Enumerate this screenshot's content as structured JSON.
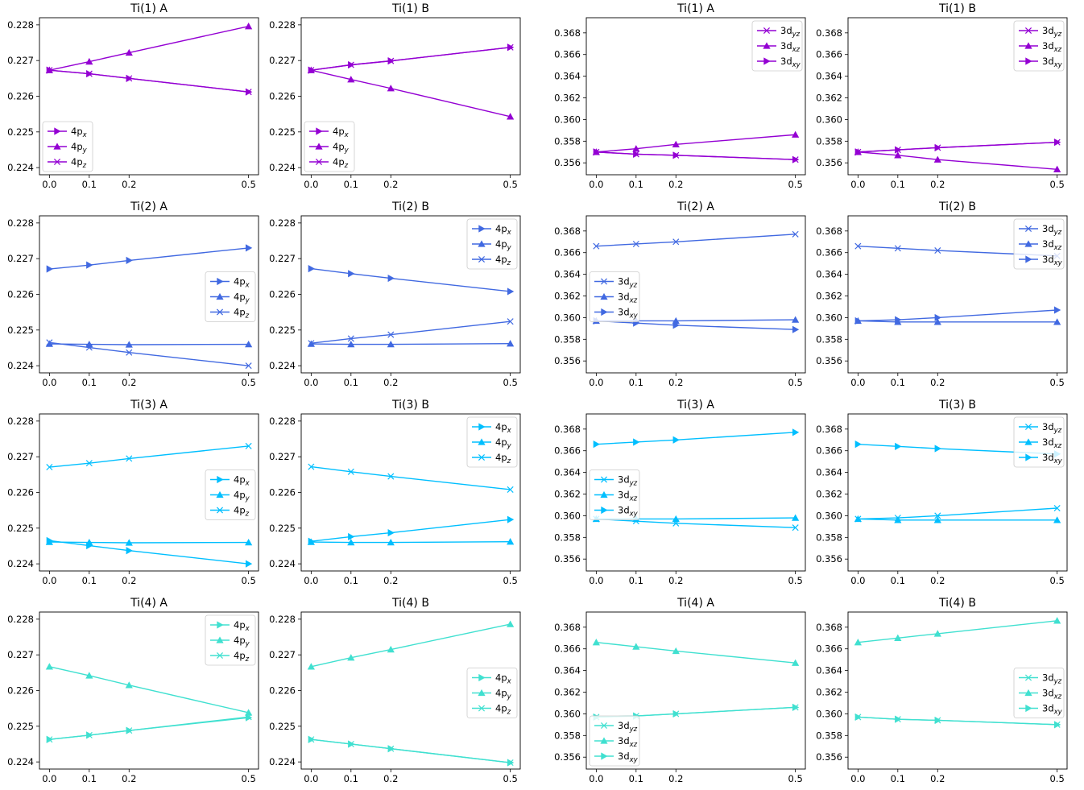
{
  "colors": {
    "Ti(1)": "#9400D3",
    "Ti(2)": "#4169E1",
    "Ti(3)": "#00BFFF",
    "Ti(4)": "#40E0D0"
  },
  "chart_data": [
    {
      "type": "line",
      "title": "Ti(1) A",
      "x": [
        0.0,
        0.1,
        0.2,
        0.5
      ],
      "xticks": [
        "0.0",
        "0.1",
        "0.2",
        "0.5"
      ],
      "ylim": [
        0.2238,
        0.2282
      ],
      "yticks": [
        "0.224",
        "0.225",
        "0.226",
        "0.227",
        "0.228"
      ],
      "legend": "lower-left",
      "series": [
        {
          "name": "4p",
          "sub": "x",
          "marker": "tri-right",
          "values": [
            0.22673,
            0.22663,
            0.2265,
            0.22612
          ]
        },
        {
          "name": "4p",
          "sub": "y",
          "marker": "tri-up",
          "values": [
            0.22673,
            0.22697,
            0.22722,
            0.22796
          ]
        },
        {
          "name": "4p",
          "sub": "z",
          "marker": "x",
          "values": [
            0.22673,
            0.22663,
            0.2265,
            0.22612
          ]
        }
      ]
    },
    {
      "type": "line",
      "title": "Ti(1) B",
      "x": [
        0.0,
        0.1,
        0.2,
        0.5
      ],
      "xticks": [
        "0.0",
        "0.1",
        "0.2",
        "0.5"
      ],
      "ylim": [
        0.2238,
        0.2282
      ],
      "yticks": [
        "0.224",
        "0.225",
        "0.226",
        "0.227",
        "0.228"
      ],
      "legend": "lower-left",
      "series": [
        {
          "name": "4p",
          "sub": "x",
          "marker": "tri-right",
          "values": [
            0.22673,
            0.22688,
            0.22699,
            0.22737
          ]
        },
        {
          "name": "4p",
          "sub": "y",
          "marker": "tri-up",
          "values": [
            0.22673,
            0.22647,
            0.22622,
            0.22543
          ]
        },
        {
          "name": "4p",
          "sub": "z",
          "marker": "x",
          "values": [
            0.22673,
            0.22688,
            0.22699,
            0.22737
          ]
        }
      ]
    },
    {
      "type": "line",
      "title": "Ti(1) A",
      "x": [
        0.0,
        0.1,
        0.2,
        0.5
      ],
      "xticks": [
        "0.0",
        "0.1",
        "0.2",
        "0.5"
      ],
      "ylim": [
        0.3549,
        0.3694
      ],
      "yticks": [
        "0.356",
        "0.358",
        "0.360",
        "0.362",
        "0.364",
        "0.366",
        "0.368"
      ],
      "legend": "top-right",
      "series": [
        {
          "name": "3d",
          "sub": "yz",
          "marker": "x",
          "values": [
            0.357,
            0.3568,
            0.3567,
            0.3563
          ]
        },
        {
          "name": "3d",
          "sub": "xz",
          "marker": "tri-up",
          "values": [
            0.357,
            0.3573,
            0.3577,
            0.3586
          ]
        },
        {
          "name": "3d",
          "sub": "xy",
          "marker": "tri-right",
          "values": [
            0.357,
            0.3568,
            0.3567,
            0.3563
          ]
        }
      ]
    },
    {
      "type": "line",
      "title": "Ti(1) B",
      "x": [
        0.0,
        0.1,
        0.2,
        0.5
      ],
      "xticks": [
        "0.0",
        "0.1",
        "0.2",
        "0.5"
      ],
      "ylim": [
        0.3549,
        0.3694
      ],
      "yticks": [
        "0.356",
        "0.358",
        "0.360",
        "0.362",
        "0.364",
        "0.366",
        "0.368"
      ],
      "legend": "top-right",
      "series": [
        {
          "name": "3d",
          "sub": "yz",
          "marker": "x",
          "values": [
            0.357,
            0.3572,
            0.3574,
            0.3579
          ]
        },
        {
          "name": "3d",
          "sub": "xz",
          "marker": "tri-up",
          "values": [
            0.357,
            0.3567,
            0.3563,
            0.3554
          ]
        },
        {
          "name": "3d",
          "sub": "xy",
          "marker": "tri-right",
          "values": [
            0.357,
            0.3572,
            0.3574,
            0.3579
          ]
        }
      ]
    },
    {
      "type": "line",
      "title": "Ti(2) A",
      "x": [
        0.0,
        0.1,
        0.2,
        0.5
      ],
      "xticks": [
        "0.0",
        "0.1",
        "0.2",
        "0.5"
      ],
      "ylim": [
        0.2238,
        0.2282
      ],
      "yticks": [
        "0.224",
        "0.225",
        "0.226",
        "0.227",
        "0.228"
      ],
      "legend": "center-right",
      "series": [
        {
          "name": "4p",
          "sub": "x",
          "marker": "tri-right",
          "values": [
            0.22671,
            0.22682,
            0.22695,
            0.2273
          ]
        },
        {
          "name": "4p",
          "sub": "y",
          "marker": "tri-up",
          "values": [
            0.22461,
            0.2246,
            0.22459,
            0.2246
          ]
        },
        {
          "name": "4p",
          "sub": "z",
          "marker": "x",
          "values": [
            0.22465,
            0.22451,
            0.22437,
            0.224
          ]
        }
      ]
    },
    {
      "type": "line",
      "title": "Ti(2) B",
      "x": [
        0.0,
        0.1,
        0.2,
        0.5
      ],
      "xticks": [
        "0.0",
        "0.1",
        "0.2",
        "0.5"
      ],
      "ylim": [
        0.2238,
        0.2282
      ],
      "yticks": [
        "0.224",
        "0.225",
        "0.226",
        "0.227",
        "0.228"
      ],
      "legend": "top-right",
      "series": [
        {
          "name": "4p",
          "sub": "x",
          "marker": "tri-right",
          "values": [
            0.22672,
            0.22658,
            0.22645,
            0.22608
          ]
        },
        {
          "name": "4p",
          "sub": "y",
          "marker": "tri-up",
          "values": [
            0.22461,
            0.2246,
            0.2246,
            0.22462
          ]
        },
        {
          "name": "4p",
          "sub": "z",
          "marker": "x",
          "values": [
            0.22463,
            0.22476,
            0.22487,
            0.22524
          ]
        }
      ]
    },
    {
      "type": "line",
      "title": "Ti(2) A",
      "x": [
        0.0,
        0.1,
        0.2,
        0.5
      ],
      "xticks": [
        "0.0",
        "0.1",
        "0.2",
        "0.5"
      ],
      "ylim": [
        0.3549,
        0.3694
      ],
      "yticks": [
        "0.356",
        "0.358",
        "0.360",
        "0.362",
        "0.364",
        "0.366",
        "0.368"
      ],
      "legend": "center-left",
      "series": [
        {
          "name": "3d",
          "sub": "yz",
          "marker": "x",
          "values": [
            0.3666,
            0.3668,
            0.367,
            0.3677
          ]
        },
        {
          "name": "3d",
          "sub": "xz",
          "marker": "tri-up",
          "values": [
            0.3597,
            0.3597,
            0.3597,
            0.3598
          ]
        },
        {
          "name": "3d",
          "sub": "xy",
          "marker": "tri-right",
          "values": [
            0.3597,
            0.3595,
            0.3593,
            0.3589
          ]
        }
      ]
    },
    {
      "type": "line",
      "title": "Ti(2) B",
      "x": [
        0.0,
        0.1,
        0.2,
        0.5
      ],
      "xticks": [
        "0.0",
        "0.1",
        "0.2",
        "0.5"
      ],
      "ylim": [
        0.3549,
        0.3694
      ],
      "yticks": [
        "0.356",
        "0.358",
        "0.360",
        "0.362",
        "0.364",
        "0.366",
        "0.368"
      ],
      "legend": "top-right",
      "series": [
        {
          "name": "3d",
          "sub": "yz",
          "marker": "x",
          "values": [
            0.3666,
            0.3664,
            0.3662,
            0.3657
          ]
        },
        {
          "name": "3d",
          "sub": "xz",
          "marker": "tri-up",
          "values": [
            0.3597,
            0.3596,
            0.3596,
            0.3596
          ]
        },
        {
          "name": "3d",
          "sub": "xy",
          "marker": "tri-right",
          "values": [
            0.3597,
            0.3598,
            0.36,
            0.3607
          ]
        }
      ]
    },
    {
      "type": "line",
      "title": "Ti(3) A",
      "x": [
        0.0,
        0.1,
        0.2,
        0.5
      ],
      "xticks": [
        "0.0",
        "0.1",
        "0.2",
        "0.5"
      ],
      "ylim": [
        0.2238,
        0.2282
      ],
      "yticks": [
        "0.224",
        "0.225",
        "0.226",
        "0.227",
        "0.228"
      ],
      "legend": "center-right",
      "series": [
        {
          "name": "4p",
          "sub": "x",
          "marker": "tri-right",
          "values": [
            0.22465,
            0.22451,
            0.22437,
            0.224
          ]
        },
        {
          "name": "4p",
          "sub": "y",
          "marker": "tri-up",
          "values": [
            0.22461,
            0.2246,
            0.22459,
            0.2246
          ]
        },
        {
          "name": "4p",
          "sub": "z",
          "marker": "x",
          "values": [
            0.22671,
            0.22682,
            0.22695,
            0.2273
          ]
        }
      ]
    },
    {
      "type": "line",
      "title": "Ti(3) B",
      "x": [
        0.0,
        0.1,
        0.2,
        0.5
      ],
      "xticks": [
        "0.0",
        "0.1",
        "0.2",
        "0.5"
      ],
      "ylim": [
        0.2238,
        0.2282
      ],
      "yticks": [
        "0.224",
        "0.225",
        "0.226",
        "0.227",
        "0.228"
      ],
      "legend": "top-right",
      "series": [
        {
          "name": "4p",
          "sub": "x",
          "marker": "tri-right",
          "values": [
            0.22463,
            0.22476,
            0.22487,
            0.22524
          ]
        },
        {
          "name": "4p",
          "sub": "y",
          "marker": "tri-up",
          "values": [
            0.22461,
            0.2246,
            0.2246,
            0.22462
          ]
        },
        {
          "name": "4p",
          "sub": "z",
          "marker": "x",
          "values": [
            0.22672,
            0.22658,
            0.22645,
            0.22608
          ]
        }
      ]
    },
    {
      "type": "line",
      "title": "Ti(3) A",
      "x": [
        0.0,
        0.1,
        0.2,
        0.5
      ],
      "xticks": [
        "0.0",
        "0.1",
        "0.2",
        "0.5"
      ],
      "ylim": [
        0.3549,
        0.3694
      ],
      "yticks": [
        "0.356",
        "0.358",
        "0.360",
        "0.362",
        "0.364",
        "0.366",
        "0.368"
      ],
      "legend": "center-left",
      "series": [
        {
          "name": "3d",
          "sub": "yz",
          "marker": "x",
          "values": [
            0.3597,
            0.3595,
            0.3593,
            0.3589
          ]
        },
        {
          "name": "3d",
          "sub": "xz",
          "marker": "tri-up",
          "values": [
            0.3597,
            0.3597,
            0.3597,
            0.3598
          ]
        },
        {
          "name": "3d",
          "sub": "xy",
          "marker": "tri-right",
          "values": [
            0.3666,
            0.3668,
            0.367,
            0.3677
          ]
        }
      ]
    },
    {
      "type": "line",
      "title": "Ti(3) B",
      "x": [
        0.0,
        0.1,
        0.2,
        0.5
      ],
      "xticks": [
        "0.0",
        "0.1",
        "0.2",
        "0.5"
      ],
      "ylim": [
        0.3549,
        0.3694
      ],
      "yticks": [
        "0.356",
        "0.358",
        "0.360",
        "0.362",
        "0.364",
        "0.366",
        "0.368"
      ],
      "legend": "top-right",
      "series": [
        {
          "name": "3d",
          "sub": "yz",
          "marker": "x",
          "values": [
            0.3597,
            0.3598,
            0.36,
            0.3607
          ]
        },
        {
          "name": "3d",
          "sub": "xz",
          "marker": "tri-up",
          "values": [
            0.3597,
            0.3596,
            0.3596,
            0.3596
          ]
        },
        {
          "name": "3d",
          "sub": "xy",
          "marker": "tri-right",
          "values": [
            0.3666,
            0.3664,
            0.3662,
            0.3657
          ]
        }
      ]
    },
    {
      "type": "line",
      "title": "Ti(4) A",
      "x": [
        0.0,
        0.1,
        0.2,
        0.5
      ],
      "xticks": [
        "0.0",
        "0.1",
        "0.2",
        "0.5"
      ],
      "ylim": [
        0.2238,
        0.2282
      ],
      "yticks": [
        "0.224",
        "0.225",
        "0.226",
        "0.227",
        "0.228"
      ],
      "legend": "top-right",
      "series": [
        {
          "name": "4p",
          "sub": "x",
          "marker": "tri-right",
          "values": [
            0.22463,
            0.22475,
            0.22488,
            0.22524
          ]
        },
        {
          "name": "4p",
          "sub": "y",
          "marker": "tri-up",
          "values": [
            0.22667,
            0.22642,
            0.22615,
            0.22538
          ]
        },
        {
          "name": "4p",
          "sub": "z",
          "marker": "x",
          "values": [
            0.22463,
            0.22475,
            0.22488,
            0.22526
          ]
        }
      ]
    },
    {
      "type": "line",
      "title": "Ti(4) B",
      "x": [
        0.0,
        0.1,
        0.2,
        0.5
      ],
      "xticks": [
        "0.0",
        "0.1",
        "0.2",
        "0.5"
      ],
      "ylim": [
        0.2238,
        0.2282
      ],
      "yticks": [
        "0.224",
        "0.225",
        "0.226",
        "0.227",
        "0.228"
      ],
      "legend": "center-right",
      "series": [
        {
          "name": "4p",
          "sub": "x",
          "marker": "tri-right",
          "values": [
            0.22463,
            0.2245,
            0.22437,
            0.22398
          ]
        },
        {
          "name": "4p",
          "sub": "y",
          "marker": "tri-up",
          "values": [
            0.22667,
            0.22692,
            0.22715,
            0.22786
          ]
        },
        {
          "name": "4p",
          "sub": "z",
          "marker": "x",
          "values": [
            0.22463,
            0.2245,
            0.22437,
            0.22398
          ]
        }
      ]
    },
    {
      "type": "line",
      "title": "Ti(4) A",
      "x": [
        0.0,
        0.1,
        0.2,
        0.5
      ],
      "xticks": [
        "0.0",
        "0.1",
        "0.2",
        "0.5"
      ],
      "ylim": [
        0.3549,
        0.3694
      ],
      "yticks": [
        "0.356",
        "0.358",
        "0.360",
        "0.362",
        "0.364",
        "0.366",
        "0.368"
      ],
      "legend": "lower-left",
      "series": [
        {
          "name": "3d",
          "sub": "yz",
          "marker": "x",
          "values": [
            0.3597,
            0.3598,
            0.36,
            0.3606
          ]
        },
        {
          "name": "3d",
          "sub": "xz",
          "marker": "tri-up",
          "values": [
            0.3666,
            0.3662,
            0.3658,
            0.3647
          ]
        },
        {
          "name": "3d",
          "sub": "xy",
          "marker": "tri-right",
          "values": [
            0.3597,
            0.3598,
            0.36,
            0.3606
          ]
        }
      ]
    },
    {
      "type": "line",
      "title": "Ti(4) B",
      "x": [
        0.0,
        0.1,
        0.2,
        0.5
      ],
      "xticks": [
        "0.0",
        "0.1",
        "0.2",
        "0.5"
      ],
      "ylim": [
        0.3549,
        0.3694
      ],
      "yticks": [
        "0.356",
        "0.358",
        "0.360",
        "0.362",
        "0.364",
        "0.366",
        "0.368"
      ],
      "legend": "center-right",
      "series": [
        {
          "name": "3d",
          "sub": "yz",
          "marker": "x",
          "values": [
            0.3597,
            0.3595,
            0.3594,
            0.359
          ]
        },
        {
          "name": "3d",
          "sub": "xz",
          "marker": "tri-up",
          "values": [
            0.3666,
            0.367,
            0.3674,
            0.3686
          ]
        },
        {
          "name": "3d",
          "sub": "xy",
          "marker": "tri-right",
          "values": [
            0.3597,
            0.3595,
            0.3594,
            0.359
          ]
        }
      ]
    }
  ]
}
